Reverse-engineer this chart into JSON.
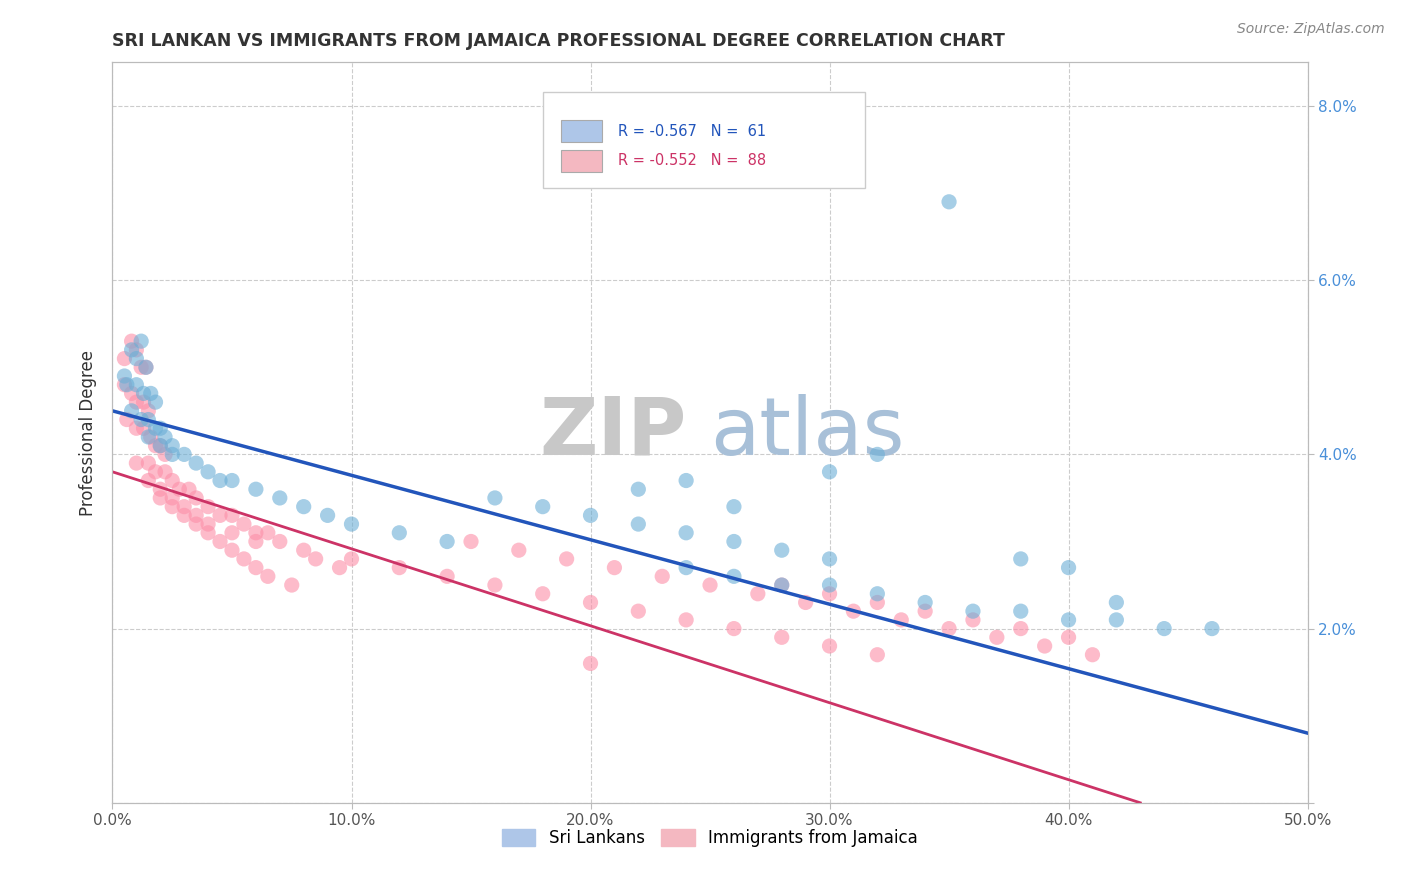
{
  "title": "SRI LANKAN VS IMMIGRANTS FROM JAMAICA PROFESSIONAL DEGREE CORRELATION CHART",
  "source_text": "Source: ZipAtlas.com",
  "ylabel": "Professional Degree",
  "xlim": [
    0.0,
    0.5
  ],
  "ylim": [
    0.0,
    0.085
  ],
  "xtick_labels": [
    "0.0%",
    "10.0%",
    "20.0%",
    "30.0%",
    "40.0%",
    "50.0%"
  ],
  "xtick_vals": [
    0.0,
    0.1,
    0.2,
    0.3,
    0.4,
    0.5
  ],
  "ytick_labels": [
    "",
    "2.0%",
    "4.0%",
    "6.0%",
    "8.0%"
  ],
  "ytick_vals": [
    0.0,
    0.02,
    0.04,
    0.06,
    0.08
  ],
  "legend_entries": [
    {
      "label": "R = -0.567   N =  61",
      "color": "#aec6e8"
    },
    {
      "label": "R = -0.552   N =  88",
      "color": "#f4b8c1"
    }
  ],
  "legend_bottom_labels": [
    "Sri Lankans",
    "Immigrants from Jamaica"
  ],
  "legend_bottom_colors": [
    "#aec6e8",
    "#f4b8c1"
  ],
  "blue_color": "#6baed6",
  "pink_color": "#fc8fa8",
  "blue_line_color": "#2255bb",
  "pink_line_color": "#cc3366",
  "title_color": "#333333",
  "axis_color": "#bbbbbb",
  "grid_color": "#cccccc",
  "watermark_zip": "ZIP",
  "watermark_atlas": "atlas",
  "watermark_color_zip": "#c8c8c8",
  "watermark_color_atlas": "#a8c0d8",
  "background_color": "#ffffff",
  "blue_scatter": [
    [
      0.005,
      0.049
    ],
    [
      0.008,
      0.052
    ],
    [
      0.01,
      0.051
    ],
    [
      0.012,
      0.053
    ],
    [
      0.014,
      0.05
    ],
    [
      0.006,
      0.048
    ],
    [
      0.01,
      0.048
    ],
    [
      0.013,
      0.047
    ],
    [
      0.016,
      0.047
    ],
    [
      0.018,
      0.046
    ],
    [
      0.008,
      0.045
    ],
    [
      0.012,
      0.044
    ],
    [
      0.015,
      0.044
    ],
    [
      0.018,
      0.043
    ],
    [
      0.02,
      0.043
    ],
    [
      0.022,
      0.042
    ],
    [
      0.025,
      0.041
    ],
    [
      0.015,
      0.042
    ],
    [
      0.02,
      0.041
    ],
    [
      0.025,
      0.04
    ],
    [
      0.03,
      0.04
    ],
    [
      0.035,
      0.039
    ],
    [
      0.04,
      0.038
    ],
    [
      0.045,
      0.037
    ],
    [
      0.05,
      0.037
    ],
    [
      0.06,
      0.036
    ],
    [
      0.07,
      0.035
    ],
    [
      0.08,
      0.034
    ],
    [
      0.09,
      0.033
    ],
    [
      0.1,
      0.032
    ],
    [
      0.12,
      0.031
    ],
    [
      0.14,
      0.03
    ],
    [
      0.16,
      0.035
    ],
    [
      0.18,
      0.034
    ],
    [
      0.2,
      0.033
    ],
    [
      0.22,
      0.032
    ],
    [
      0.24,
      0.031
    ],
    [
      0.26,
      0.03
    ],
    [
      0.28,
      0.029
    ],
    [
      0.3,
      0.028
    ],
    [
      0.24,
      0.027
    ],
    [
      0.26,
      0.026
    ],
    [
      0.28,
      0.025
    ],
    [
      0.3,
      0.025
    ],
    [
      0.32,
      0.024
    ],
    [
      0.34,
      0.023
    ],
    [
      0.36,
      0.022
    ],
    [
      0.38,
      0.022
    ],
    [
      0.4,
      0.021
    ],
    [
      0.42,
      0.023
    ],
    [
      0.38,
      0.028
    ],
    [
      0.4,
      0.027
    ],
    [
      0.42,
      0.021
    ],
    [
      0.44,
      0.02
    ],
    [
      0.46,
      0.02
    ],
    [
      0.3,
      0.038
    ],
    [
      0.32,
      0.04
    ],
    [
      0.22,
      0.036
    ],
    [
      0.24,
      0.037
    ],
    [
      0.26,
      0.034
    ],
    [
      0.35,
      0.069
    ]
  ],
  "pink_scatter": [
    [
      0.005,
      0.051
    ],
    [
      0.008,
      0.053
    ],
    [
      0.01,
      0.052
    ],
    [
      0.012,
      0.05
    ],
    [
      0.014,
      0.05
    ],
    [
      0.005,
      0.048
    ],
    [
      0.008,
      0.047
    ],
    [
      0.01,
      0.046
    ],
    [
      0.013,
      0.046
    ],
    [
      0.015,
      0.045
    ],
    [
      0.006,
      0.044
    ],
    [
      0.01,
      0.043
    ],
    [
      0.013,
      0.043
    ],
    [
      0.016,
      0.042
    ],
    [
      0.018,
      0.041
    ],
    [
      0.02,
      0.041
    ],
    [
      0.022,
      0.04
    ],
    [
      0.01,
      0.039
    ],
    [
      0.015,
      0.039
    ],
    [
      0.018,
      0.038
    ],
    [
      0.022,
      0.038
    ],
    [
      0.025,
      0.037
    ],
    [
      0.028,
      0.036
    ],
    [
      0.032,
      0.036
    ],
    [
      0.035,
      0.035
    ],
    [
      0.04,
      0.034
    ],
    [
      0.045,
      0.033
    ],
    [
      0.05,
      0.033
    ],
    [
      0.055,
      0.032
    ],
    [
      0.06,
      0.031
    ],
    [
      0.065,
      0.031
    ],
    [
      0.07,
      0.03
    ],
    [
      0.015,
      0.037
    ],
    [
      0.02,
      0.036
    ],
    [
      0.025,
      0.035
    ],
    [
      0.03,
      0.034
    ],
    [
      0.035,
      0.033
    ],
    [
      0.04,
      0.032
    ],
    [
      0.05,
      0.031
    ],
    [
      0.06,
      0.03
    ],
    [
      0.08,
      0.029
    ],
    [
      0.1,
      0.028
    ],
    [
      0.12,
      0.027
    ],
    [
      0.14,
      0.026
    ],
    [
      0.16,
      0.025
    ],
    [
      0.18,
      0.024
    ],
    [
      0.2,
      0.023
    ],
    [
      0.22,
      0.022
    ],
    [
      0.24,
      0.021
    ],
    [
      0.26,
      0.02
    ],
    [
      0.28,
      0.025
    ],
    [
      0.3,
      0.024
    ],
    [
      0.32,
      0.023
    ],
    [
      0.34,
      0.022
    ],
    [
      0.36,
      0.021
    ],
    [
      0.38,
      0.02
    ],
    [
      0.4,
      0.019
    ],
    [
      0.28,
      0.019
    ],
    [
      0.3,
      0.018
    ],
    [
      0.32,
      0.017
    ],
    [
      0.15,
      0.03
    ],
    [
      0.17,
      0.029
    ],
    [
      0.19,
      0.028
    ],
    [
      0.21,
      0.027
    ],
    [
      0.23,
      0.026
    ],
    [
      0.25,
      0.025
    ],
    [
      0.27,
      0.024
    ],
    [
      0.29,
      0.023
    ],
    [
      0.31,
      0.022
    ],
    [
      0.33,
      0.021
    ],
    [
      0.35,
      0.02
    ],
    [
      0.37,
      0.019
    ],
    [
      0.39,
      0.018
    ],
    [
      0.41,
      0.017
    ],
    [
      0.02,
      0.035
    ],
    [
      0.025,
      0.034
    ],
    [
      0.03,
      0.033
    ],
    [
      0.035,
      0.032
    ],
    [
      0.04,
      0.031
    ],
    [
      0.045,
      0.03
    ],
    [
      0.05,
      0.029
    ],
    [
      0.055,
      0.028
    ],
    [
      0.06,
      0.027
    ],
    [
      0.065,
      0.026
    ],
    [
      0.075,
      0.025
    ],
    [
      0.085,
      0.028
    ],
    [
      0.095,
      0.027
    ],
    [
      0.2,
      0.016
    ]
  ],
  "blue_trend": {
    "x_start": 0.0,
    "y_start": 0.045,
    "x_end": 0.5,
    "y_end": 0.008
  },
  "pink_trend": {
    "x_start": 0.0,
    "y_start": 0.038,
    "x_end": 0.43,
    "y_end": 0.0
  }
}
